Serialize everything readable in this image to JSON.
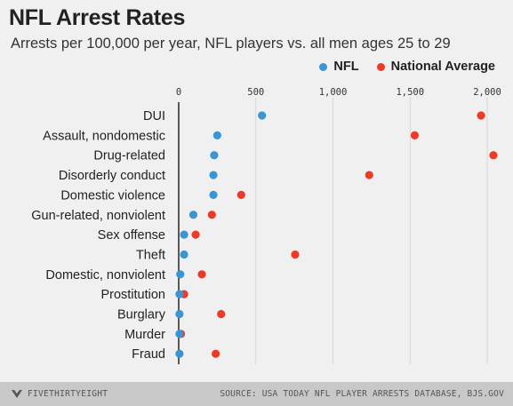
{
  "header": {
    "title": "NFL Arrest Rates",
    "subtitle": "Arrests per 100,000 per year, NFL players vs. all men ages 25 to 29"
  },
  "legend": {
    "position": "top-right",
    "items": [
      {
        "label": "NFL",
        "color": "#3b95d3"
      },
      {
        "label": "National Average",
        "color": "#ed3a26"
      }
    ]
  },
  "chart_data": {
    "type": "scatter",
    "orientation": "horizontal",
    "categories": [
      "DUI",
      "Assault, nondomestic",
      "Drug-related",
      "Disorderly conduct",
      "Domestic violence",
      "Gun-related, nonviolent",
      "Sex offense",
      "Theft",
      "Domestic, nonviolent",
      "Prostitution",
      "Burglary",
      "Murder",
      "Fraud"
    ],
    "series": [
      {
        "name": "NFL",
        "color": "#3b95d3",
        "values": [
          540,
          250,
          230,
          225,
          225,
          95,
          35,
          35,
          10,
          5,
          5,
          5,
          5
        ]
      },
      {
        "name": "National Average",
        "color": "#ed3a26",
        "values": [
          1960,
          1530,
          2040,
          1235,
          405,
          215,
          110,
          755,
          150,
          35,
          275,
          15,
          240
        ]
      }
    ],
    "x_ticks": [
      "0",
      "500",
      "1,000",
      "1,500",
      "2,000"
    ],
    "x_tick_values": [
      0,
      500,
      1000,
      1500,
      2000
    ],
    "xlim": [
      0,
      2050
    ],
    "grid": true
  },
  "footer": {
    "brand": "FIVETHIRTYEIGHT",
    "source": "SOURCE: USA TODAY NFL PLAYER ARRESTS DATABASE, BJS.GOV"
  }
}
